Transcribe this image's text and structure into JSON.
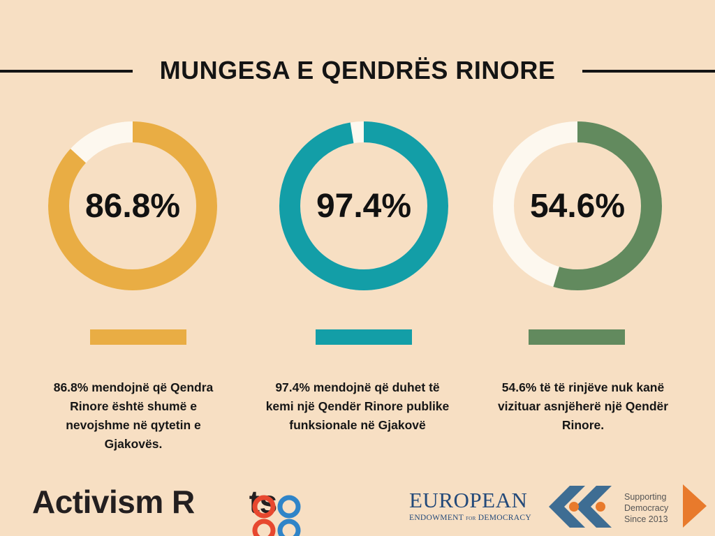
{
  "header": {
    "title": "MUNGESA E QENDRËS RINORE"
  },
  "colors": {
    "background": "#f7dfc3",
    "remainder": "#fdf8ef",
    "yellow": "#e9ad44",
    "teal": "#139ea7",
    "green": "#628a5e"
  },
  "chart_data": [
    {
      "type": "pie",
      "variant": "donut",
      "value": 86.8,
      "label": "86.8%",
      "color": "#e9ad44",
      "description": "86.8% mendojnë që Qendra Rinore është shumë e nevojshme në qytetin e Gjakovës."
    },
    {
      "type": "pie",
      "variant": "donut",
      "value": 97.4,
      "label": "97.4%",
      "color": "#139ea7",
      "description": "97.4% mendojnë që duhet të kemi një Qendër Rinore publike funksionale në Gjakovë"
    },
    {
      "type": "pie",
      "variant": "donut",
      "value": 54.6,
      "label": "54.6%",
      "color": "#628a5e",
      "description": "54.6% të të rinjëve nuk kanë vizituar asnjëherë një Qendër Rinore."
    }
  ],
  "logos": {
    "activism_roots": {
      "prefix": "Activism R",
      "suffix": "ts",
      "icon": "double-o-rings"
    },
    "ned": {
      "top": "EUROPEAN",
      "bottom_left": "ENDOWMENT",
      "for": "FOR",
      "bottom_right": "DEMOCRACY"
    },
    "supporting": {
      "line1": "Supporting",
      "line2": "Democracy",
      "line3": "Since 2013",
      "icon": "double-chevron-left"
    }
  }
}
